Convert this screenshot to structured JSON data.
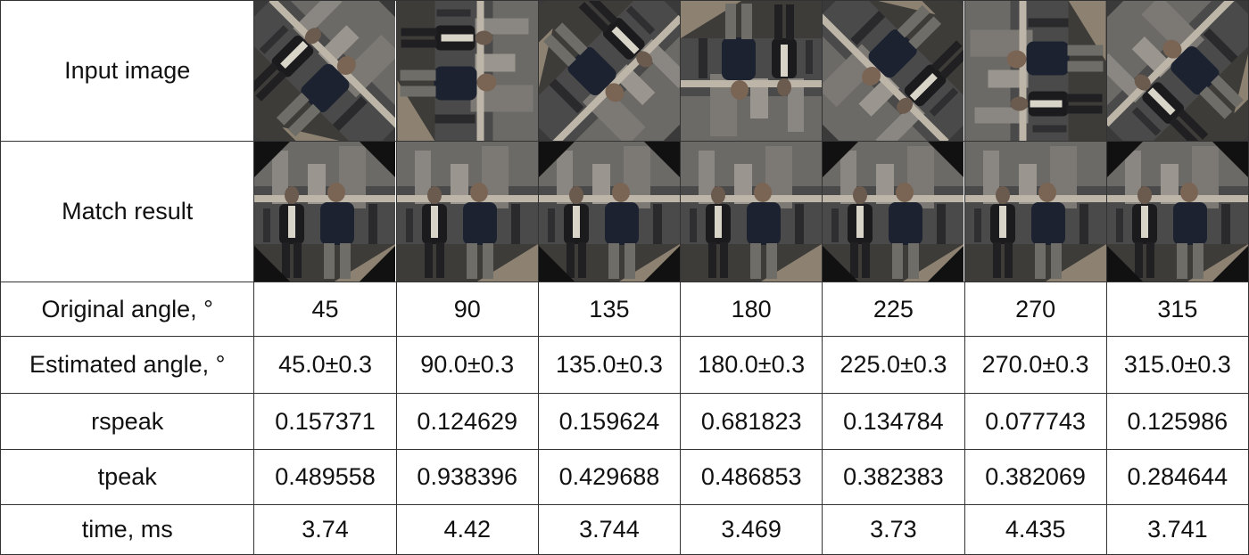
{
  "rows": {
    "input_label": "Input image",
    "match_label": "Match result",
    "original_label": "Original angle, °",
    "estimated_label": "Estimated angle, °",
    "rspeak_label": "rspeak",
    "tpeak_label": "tpeak",
    "time_label": "time, ms"
  },
  "columns": [
    {
      "original": "45",
      "estimated": "45.0±0.3",
      "rspeak": "0.157371",
      "tpeak": "0.489558",
      "time": "3.74",
      "rotation_deg": 45
    },
    {
      "original": "90",
      "estimated": "90.0±0.3",
      "rspeak": "0.124629",
      "tpeak": "0.938396",
      "time": "4.42",
      "rotation_deg": 90
    },
    {
      "original": "135",
      "estimated": "135.0±0.3",
      "rspeak": "0.159624",
      "tpeak": "0.429688",
      "time": "3.744",
      "rotation_deg": 135
    },
    {
      "original": "180",
      "estimated": "180.0±0.3",
      "rspeak": "0.681823",
      "tpeak": "0.486853",
      "time": "3.469",
      "rotation_deg": 180
    },
    {
      "original": "225",
      "estimated": "225.0±0.3",
      "rspeak": "0.134784",
      "tpeak": "0.382383",
      "time": "3.73",
      "rotation_deg": 225
    },
    {
      "original": "270",
      "estimated": "270.0±0.3",
      "rspeak": "0.077743",
      "tpeak": "0.382069",
      "time": "4.435",
      "rotation_deg": 270
    },
    {
      "original": "315",
      "estimated": "315.0±0.3",
      "rspeak": "0.125986",
      "tpeak": "0.284644",
      "time": "3.741",
      "rotation_deg": 315
    }
  ]
}
